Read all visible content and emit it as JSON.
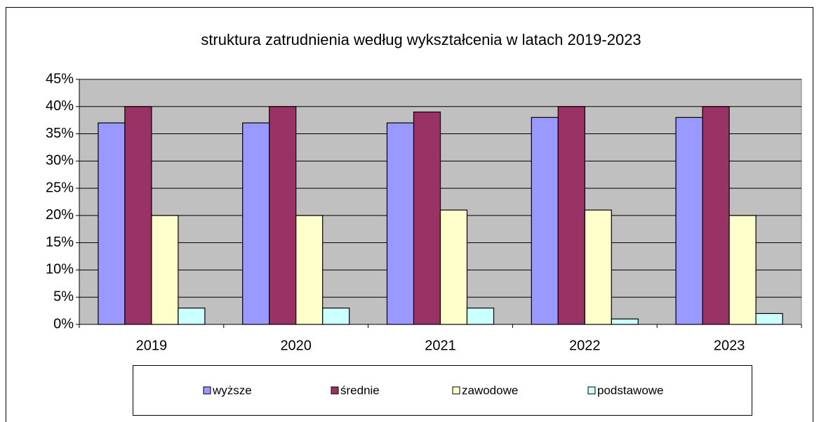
{
  "chart_data": {
    "type": "bar",
    "title": "struktura  zatrudnienia  według  wykształcenia  w latach 2019-2023",
    "categories": [
      "2019",
      "2020",
      "2021",
      "2022",
      "2023"
    ],
    "series": [
      {
        "name": "wyższe",
        "color": "#9999ff",
        "values": [
          37,
          37,
          37,
          38,
          38
        ]
      },
      {
        "name": "średnie",
        "color": "#993366",
        "values": [
          40,
          40,
          39,
          40,
          40
        ]
      },
      {
        "name": "zawodowe",
        "color": "#ffffcc",
        "values": [
          20,
          20,
          21,
          21,
          20
        ]
      },
      {
        "name": "podstawowe",
        "color": "#ccffff",
        "values": [
          3,
          3,
          3,
          1,
          2
        ]
      }
    ],
    "ylim": [
      0,
      45
    ],
    "yticks": [
      {
        "value": 0,
        "label": "0%"
      },
      {
        "value": 5,
        "label": "5%"
      },
      {
        "value": 10,
        "label": "10%"
      },
      {
        "value": 15,
        "label": "15%"
      },
      {
        "value": 20,
        "label": "20%"
      },
      {
        "value": 25,
        "label": "25%"
      },
      {
        "value": 30,
        "label": "30%"
      },
      {
        "value": 35,
        "label": "35%"
      },
      {
        "value": 40,
        "label": "40%"
      },
      {
        "value": 45,
        "label": "45%"
      }
    ],
    "grid": true,
    "legend": "bottom",
    "plot_background": "#c0c0c0"
  }
}
